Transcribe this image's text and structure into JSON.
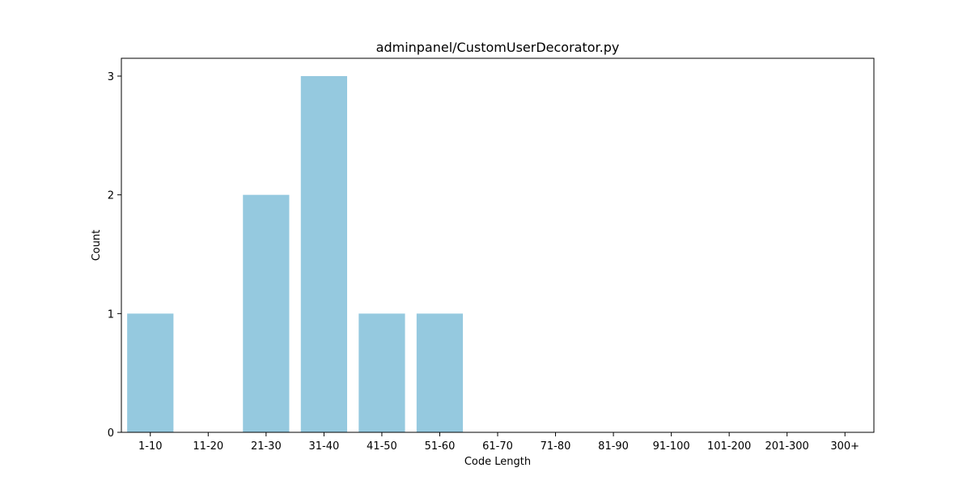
{
  "chart_data": {
    "type": "bar",
    "title": "adminpanel/CustomUserDecorator.py",
    "xlabel": "Code Length",
    "ylabel": "Count",
    "categories": [
      "1-10",
      "11-20",
      "21-30",
      "31-40",
      "41-50",
      "51-60",
      "61-70",
      "71-80",
      "81-90",
      "91-100",
      "101-200",
      "201-300",
      "300+"
    ],
    "values": [
      1,
      0,
      2,
      3,
      1,
      1,
      0,
      0,
      0,
      0,
      0,
      0,
      0
    ],
    "ylim": [
      0,
      3.15
    ],
    "yticks": [
      0,
      1,
      2,
      3
    ],
    "bar_color": "#95c9df",
    "grid": false,
    "legend": "none"
  }
}
